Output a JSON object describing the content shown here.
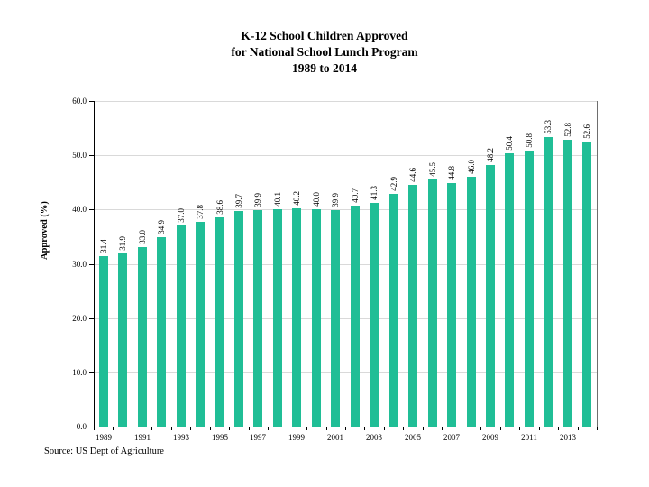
{
  "source_note": "Source: US Dept of Agriculture",
  "chart_data": {
    "type": "bar",
    "title_lines": [
      "K-12 School Children Approved",
      "for National School Lunch Program",
      "1989 to 2014"
    ],
    "title": "K-12 School Children Approved for National School Lunch Program 1989 to 2014",
    "xlabel": "",
    "ylabel": "Approved (%)",
    "categories": [
      "1989",
      "1990",
      "1991",
      "1992",
      "1993",
      "1994",
      "1995",
      "1996",
      "1997",
      "1998",
      "1999",
      "2000",
      "2001",
      "2002",
      "2003",
      "2004",
      "2005",
      "2006",
      "2007",
      "2008",
      "2009",
      "2010",
      "2011",
      "2012",
      "2013",
      "2014"
    ],
    "values": [
      31.4,
      31.9,
      33.0,
      34.9,
      37.0,
      37.8,
      38.6,
      39.7,
      39.9,
      40.1,
      40.2,
      40.0,
      39.9,
      40.7,
      41.3,
      42.9,
      44.6,
      45.5,
      44.8,
      46.0,
      48.2,
      50.4,
      50.8,
      53.3,
      52.8,
      52.6
    ],
    "ylim": [
      0,
      60
    ],
    "y_ticks": [
      0,
      10,
      20,
      30,
      40,
      50,
      60
    ],
    "y_tick_labels": [
      "0.0",
      "10.0",
      "20.0",
      "30.0",
      "40.0",
      "50.0",
      "60.0"
    ],
    "x_tick_labels": [
      "1989",
      "1991",
      "1993",
      "1995",
      "1997",
      "1999",
      "2001",
      "2003",
      "2005",
      "2007",
      "2009",
      "2011",
      "2013"
    ],
    "grid": "horizontal",
    "legend_position": "none",
    "bar_color": "#20BE96",
    "gridline_color": "#D9D9D9",
    "axis_color": "#000000",
    "value_labels_rotated": true
  }
}
